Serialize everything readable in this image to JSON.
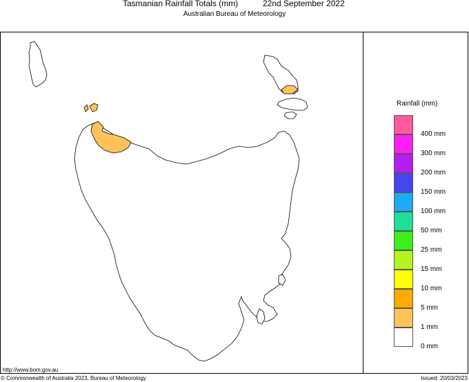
{
  "header": {
    "title": "Tasmanian Rainfall Totals (mm)",
    "date": "22nd September 2022",
    "subtitle": "Australian Bureau of Meteorology"
  },
  "legend": {
    "title": "Rainfall (mm)",
    "items": [
      {
        "label": "400 mm",
        "color": "#ff5aa0"
      },
      {
        "label": "300 mm",
        "color": "#ff1ff0"
      },
      {
        "label": "200 mm",
        "color": "#b41ef0"
      },
      {
        "label": "150 mm",
        "color": "#4646f0"
      },
      {
        "label": "100 mm",
        "color": "#1eaaf5"
      },
      {
        "label": "50 mm",
        "color": "#1ede9a"
      },
      {
        "label": "25 mm",
        "color": "#3cf01e"
      },
      {
        "label": "15 mm",
        "color": "#b4f51e"
      },
      {
        "label": "10 mm",
        "color": "#ffff00"
      },
      {
        "label": "5 mm",
        "color": "#ffaa00"
      },
      {
        "label": "1 mm",
        "color": "#ffc35a"
      },
      {
        "label": "0 mm",
        "color": "#ffffff"
      }
    ]
  },
  "map": {
    "land_color": "#ffffff",
    "outline_color": "#000000",
    "rain_areas": [
      {
        "location": "north-west coast (Stanley / Smithton area)",
        "rainfall_class": "1 mm",
        "color": "#ffc35a"
      },
      {
        "location": "Robbins Island",
        "rainfall_class": "1 mm",
        "color": "#ffc35a"
      },
      {
        "location": "Flinders Island (south-west)",
        "rainfall_class": "1 mm",
        "color": "#ffc35a"
      }
    ]
  },
  "footer": {
    "url": "http://www.bom.gov.au",
    "copyright": "© Commonwealth of Australia 2023, Bureau of Meteorology",
    "issued": "Issued: 20/03/2023"
  }
}
